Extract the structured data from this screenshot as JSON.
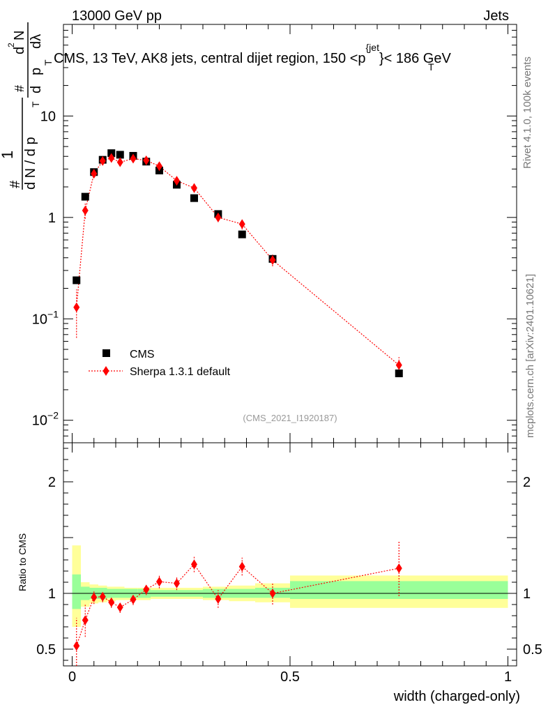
{
  "header": {
    "left": "13000 GeV pp",
    "right": "Jets"
  },
  "side_labels": {
    "rivet": "Rivet 4.1.0,  100k events",
    "mcplots": "mcplots.cern.ch [arXiv:2401.10621]"
  },
  "chart_data": {
    "type": "scatter",
    "title": "CMS, 13 TeV, AK8 jets, central dijet region, 150 <p_T^{jet}< 186 GeV",
    "title_parts": {
      "main": "CMS, 13 TeV, AK8 jets, central dijet region, 150 <p",
      "sub": "T",
      "sup": "{jet",
      "tail": "}< 186 GeV"
    },
    "xlabel": "width (charged-only)",
    "ylabel": "1/(dN/dp_T) d²N/(dp_T dλ)",
    "ylabel_parts": {
      "hash": "#",
      "one": "1",
      "den": "d N / d p",
      "T": "T",
      "num": "d",
      "sq": "2",
      "N": "N",
      "d": "d",
      "p": "p",
      "lam": "dλ"
    },
    "analysis_id": "(CMS_2021_I1920187)",
    "xlim": [
      -0.02,
      1.02
    ],
    "ylim": [
      0.006,
      80
    ],
    "yscale": "log",
    "x_ticks": [
      {
        "value": 0,
        "label": "0"
      },
      {
        "value": 0.5,
        "label": "0.5"
      },
      {
        "value": 1,
        "label": "1"
      }
    ],
    "y_ticks": [
      {
        "value": 10,
        "label": "10",
        "exp": ""
      },
      {
        "value": 1,
        "label": "1",
        "exp": ""
      },
      {
        "value": 0.1,
        "label": "10",
        "exp": "−1"
      },
      {
        "value": 0.01,
        "label": "10",
        "exp": "−2"
      }
    ],
    "legend": {
      "placement": "bottom-left",
      "entries": [
        {
          "name": "CMS",
          "marker": "square",
          "color": "#000000"
        },
        {
          "name": "Sherpa 1.3.1 default",
          "marker": "diamond",
          "color": "#ff0000"
        }
      ]
    },
    "series": [
      {
        "name": "CMS",
        "x": [
          0.01,
          0.03,
          0.05,
          0.07,
          0.09,
          0.11,
          0.14,
          0.17,
          0.2,
          0.24,
          0.28,
          0.335,
          0.39,
          0.46,
          0.75
        ],
        "y": [
          0.24,
          1.6,
          2.8,
          3.7,
          4.3,
          4.15,
          4.05,
          3.55,
          2.9,
          2.1,
          1.55,
          1.08,
          0.68,
          0.39,
          0.029
        ],
        "color": "#000000"
      },
      {
        "name": "Sherpa 1.3.1 default",
        "x": [
          0.01,
          0.03,
          0.05,
          0.07,
          0.09,
          0.11,
          0.14,
          0.17,
          0.2,
          0.24,
          0.28,
          0.335,
          0.39,
          0.46,
          0.75
        ],
        "y": [
          0.13,
          1.17,
          2.7,
          3.6,
          3.85,
          3.5,
          3.8,
          3.65,
          3.2,
          2.3,
          1.95,
          1.0,
          0.86,
          0.38,
          0.035
        ],
        "err": [
          0.065,
          0.2,
          0.25,
          0.3,
          0.3,
          0.3,
          0.3,
          0.3,
          0.25,
          0.2,
          0.2,
          0.1,
          0.1,
          0.05,
          0.007
        ],
        "color": "#ff0000"
      }
    ],
    "ratio": {
      "ylabel": "Ratio to CMS",
      "ylim": [
        0.35,
        2.35
      ],
      "y_ticks": [
        {
          "value": 0.5,
          "label": "0.5"
        },
        {
          "value": 1,
          "label": "1"
        },
        {
          "value": 2,
          "label": "2"
        }
      ],
      "bins": [
        {
          "lo": 0.0,
          "hi": 0.02,
          "g": [
            0.86,
            1.17
          ],
          "y": [
            0.7,
            1.43
          ]
        },
        {
          "lo": 0.02,
          "hi": 0.04,
          "g": [
            0.94,
            1.06
          ],
          "y": [
            0.88,
            1.1
          ]
        },
        {
          "lo": 0.04,
          "hi": 0.06,
          "g": [
            0.95,
            1.05
          ],
          "y": [
            0.91,
            1.08
          ]
        },
        {
          "lo": 0.06,
          "hi": 0.08,
          "g": [
            0.95,
            1.05
          ],
          "y": [
            0.92,
            1.07
          ]
        },
        {
          "lo": 0.08,
          "hi": 0.1,
          "g": [
            0.96,
            1.04
          ],
          "y": [
            0.93,
            1.06
          ]
        },
        {
          "lo": 0.1,
          "hi": 0.12,
          "g": [
            0.96,
            1.04
          ],
          "y": [
            0.94,
            1.06
          ]
        },
        {
          "lo": 0.12,
          "hi": 0.15,
          "g": [
            0.96,
            1.04
          ],
          "y": [
            0.94,
            1.05
          ]
        },
        {
          "lo": 0.15,
          "hi": 0.18,
          "g": [
            0.96,
            1.04
          ],
          "y": [
            0.94,
            1.05
          ]
        },
        {
          "lo": 0.18,
          "hi": 0.22,
          "g": [
            0.97,
            1.03
          ],
          "y": [
            0.95,
            1.05
          ]
        },
        {
          "lo": 0.22,
          "hi": 0.26,
          "g": [
            0.97,
            1.03
          ],
          "y": [
            0.95,
            1.05
          ]
        },
        {
          "lo": 0.26,
          "hi": 0.3,
          "g": [
            0.97,
            1.03
          ],
          "y": [
            0.95,
            1.05
          ]
        },
        {
          "lo": 0.3,
          "hi": 0.36,
          "g": [
            0.96,
            1.04
          ],
          "y": [
            0.94,
            1.06
          ]
        },
        {
          "lo": 0.36,
          "hi": 0.42,
          "g": [
            0.96,
            1.04
          ],
          "y": [
            0.93,
            1.07
          ]
        },
        {
          "lo": 0.42,
          "hi": 0.5,
          "g": [
            0.96,
            1.05
          ],
          "y": [
            0.92,
            1.09
          ]
        },
        {
          "lo": 0.5,
          "hi": 1.0,
          "g": [
            0.95,
            1.11
          ],
          "y": [
            0.87,
            1.16
          ]
        }
      ],
      "band_colors": {
        "inner": "#99ff99",
        "outer": "#ffff99"
      },
      "points": {
        "x": [
          0.01,
          0.03,
          0.05,
          0.07,
          0.09,
          0.11,
          0.14,
          0.17,
          0.2,
          0.24,
          0.28,
          0.335,
          0.39,
          0.46,
          0.75
        ],
        "y": [
          0.53,
          0.76,
          0.965,
          0.97,
          0.92,
          0.875,
          0.945,
          1.035,
          1.105,
          1.09,
          1.26,
          0.95,
          1.24,
          1.0,
          1.225
        ],
        "err": [
          0.25,
          0.15,
          0.06,
          0.05,
          0.05,
          0.05,
          0.05,
          0.05,
          0.06,
          0.06,
          0.07,
          0.08,
          0.08,
          0.1,
          0.25
        ]
      }
    }
  }
}
